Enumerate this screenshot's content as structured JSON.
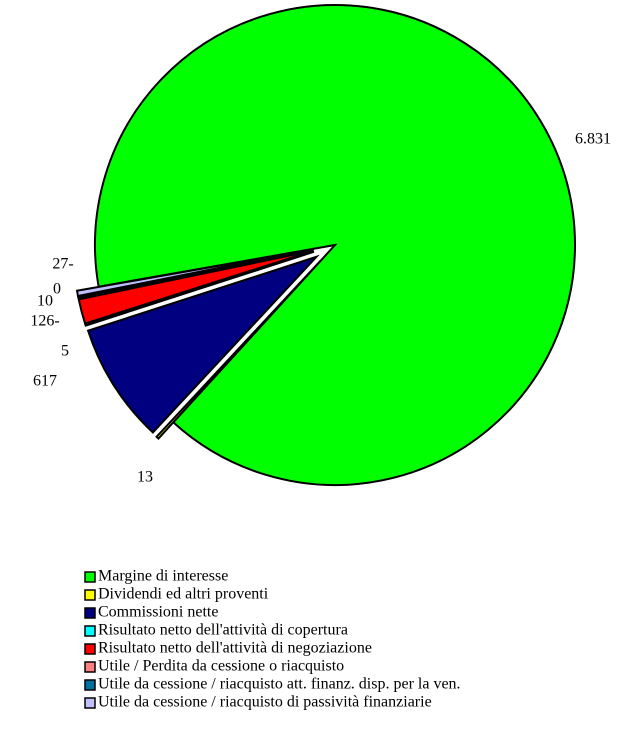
{
  "chart_data": {
    "type": "pie",
    "categories": [
      "Margine di interesse",
      "Dividendi ed altri proventi",
      "Commissioni nette",
      "Risultato netto dell'attività di copertura",
      "Risultato netto dell'attività di negoziazione",
      "Utile / Perdita da cessione o riacquisto",
      "Utile da cessione / riacquisto att. finanz. disp. per la ven.",
      "Utile da cessione / riacquisto di passività finanziarie"
    ],
    "values": [
      6831,
      13,
      617,
      5,
      -126,
      0,
      10,
      -27
    ],
    "value_labels": [
      "6.831",
      "13",
      "617",
      "5",
      "126-",
      "0",
      "10",
      "27-"
    ],
    "colors": [
      "#00ff00",
      "#ffff00",
      "#000080",
      "#00ffff",
      "#ff0000",
      "#ff8080",
      "#0070a0",
      "#c0c0ff"
    ],
    "legend": "bottom"
  }
}
